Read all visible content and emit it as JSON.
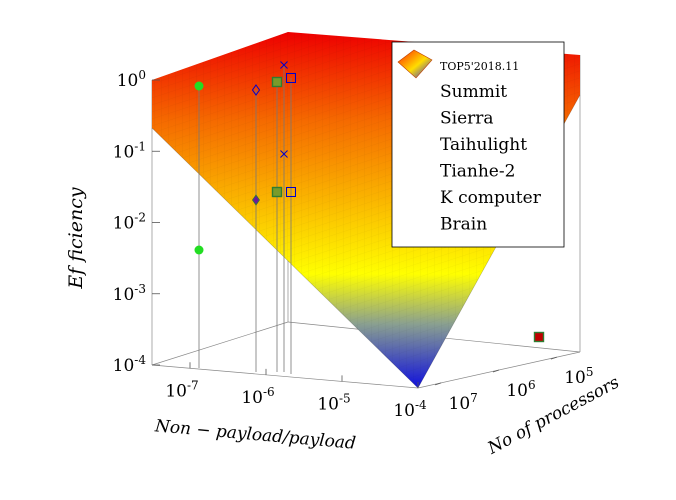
{
  "chart_data": {
    "type": "surface3d",
    "z_axis": {
      "label": "Ef ficiency",
      "scale": "log",
      "ticks": [
        {
          "value": 1,
          "label": "10^0"
        },
        {
          "value": 0.1,
          "label": "10^-1"
        },
        {
          "value": 0.01,
          "label": "10^-2"
        },
        {
          "value": 0.001,
          "label": "10^-3"
        },
        {
          "value": 0.0001,
          "label": "10^-4"
        }
      ],
      "range": [
        0.0001,
        1
      ]
    },
    "x_axis": {
      "label": "Non − payload/payload",
      "scale": "log",
      "ticks": [
        {
          "value": 1e-07,
          "label": "10^-7"
        },
        {
          "value": 1e-06,
          "label": "10^-6"
        },
        {
          "value": 1e-05,
          "label": "10^-5"
        },
        {
          "value": 0.0001,
          "label": "10^-4"
        }
      ]
    },
    "y_axis": {
      "label": "No of processors",
      "scale": "log",
      "ticks": [
        {
          "value": 100000,
          "label": "10^5"
        },
        {
          "value": 1000000,
          "label": "10^6"
        },
        {
          "value": 10000000,
          "label": "10^7"
        }
      ]
    },
    "surface": {
      "name": "TOP5'2018.11",
      "colormap": [
        "#0000cc",
        "#ffff00",
        "#ff0000"
      ]
    },
    "legend_placement": "top-right",
    "series": [
      {
        "name": "Summit",
        "marker": "filled-square",
        "color": "#c00000",
        "edge": "#2e7d32"
      },
      {
        "name": "Sierra",
        "marker": "open-square",
        "color": "#0000cc"
      },
      {
        "name": "Taihulight",
        "marker": "filled-circle",
        "color": "#22dd22"
      },
      {
        "name": "Tianhe-2",
        "marker": "open-diamond",
        "color": "#0000cc"
      },
      {
        "name": "K computer",
        "marker": "cross",
        "color": "#0000cc"
      },
      {
        "name": "Brain",
        "marker": "filled-square",
        "color": "#7a9b2a",
        "edge": "#2e7d32"
      }
    ]
  }
}
